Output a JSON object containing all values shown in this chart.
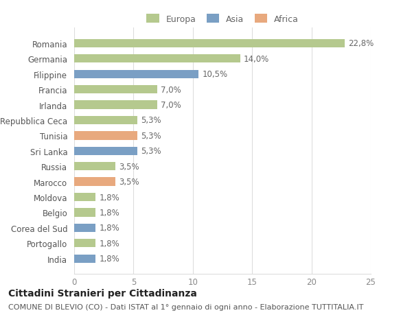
{
  "categories": [
    "India",
    "Portogallo",
    "Corea del Sud",
    "Belgio",
    "Moldova",
    "Marocco",
    "Russia",
    "Sri Lanka",
    "Tunisia",
    "Repubblica Ceca",
    "Irlanda",
    "Francia",
    "Filippine",
    "Germania",
    "Romania"
  ],
  "values": [
    1.8,
    1.8,
    1.8,
    1.8,
    1.8,
    3.5,
    3.5,
    5.3,
    5.3,
    5.3,
    7.0,
    7.0,
    10.5,
    14.0,
    22.8
  ],
  "continents": [
    "Asia",
    "Europa",
    "Asia",
    "Europa",
    "Europa",
    "Africa",
    "Europa",
    "Asia",
    "Africa",
    "Europa",
    "Europa",
    "Europa",
    "Asia",
    "Europa",
    "Europa"
  ],
  "labels": [
    "1,8%",
    "1,8%",
    "1,8%",
    "1,8%",
    "1,8%",
    "3,5%",
    "3,5%",
    "5,3%",
    "5,3%",
    "5,3%",
    "7,0%",
    "7,0%",
    "10,5%",
    "14,0%",
    "22,8%"
  ],
  "colors": {
    "Europa": "#b5c98e",
    "Asia": "#7a9fc4",
    "Africa": "#e8a97e"
  },
  "legend": [
    "Europa",
    "Asia",
    "Africa"
  ],
  "legend_colors": [
    "#b5c98e",
    "#7a9fc4",
    "#e8a97e"
  ],
  "xlim": [
    0,
    25
  ],
  "xticks": [
    0,
    5,
    10,
    15,
    20,
    25
  ],
  "title1": "Cittadini Stranieri per Cittadinanza",
  "title2": "COMUNE DI BLEVIO (CO) - Dati ISTAT al 1° gennaio di ogni anno - Elaborazione TUTTITALIA.IT",
  "background_color": "#ffffff",
  "grid_color": "#dddddd",
  "bar_height": 0.55,
  "label_fontsize": 8.5,
  "tick_fontsize": 8.5,
  "title1_fontsize": 10,
  "title2_fontsize": 8
}
